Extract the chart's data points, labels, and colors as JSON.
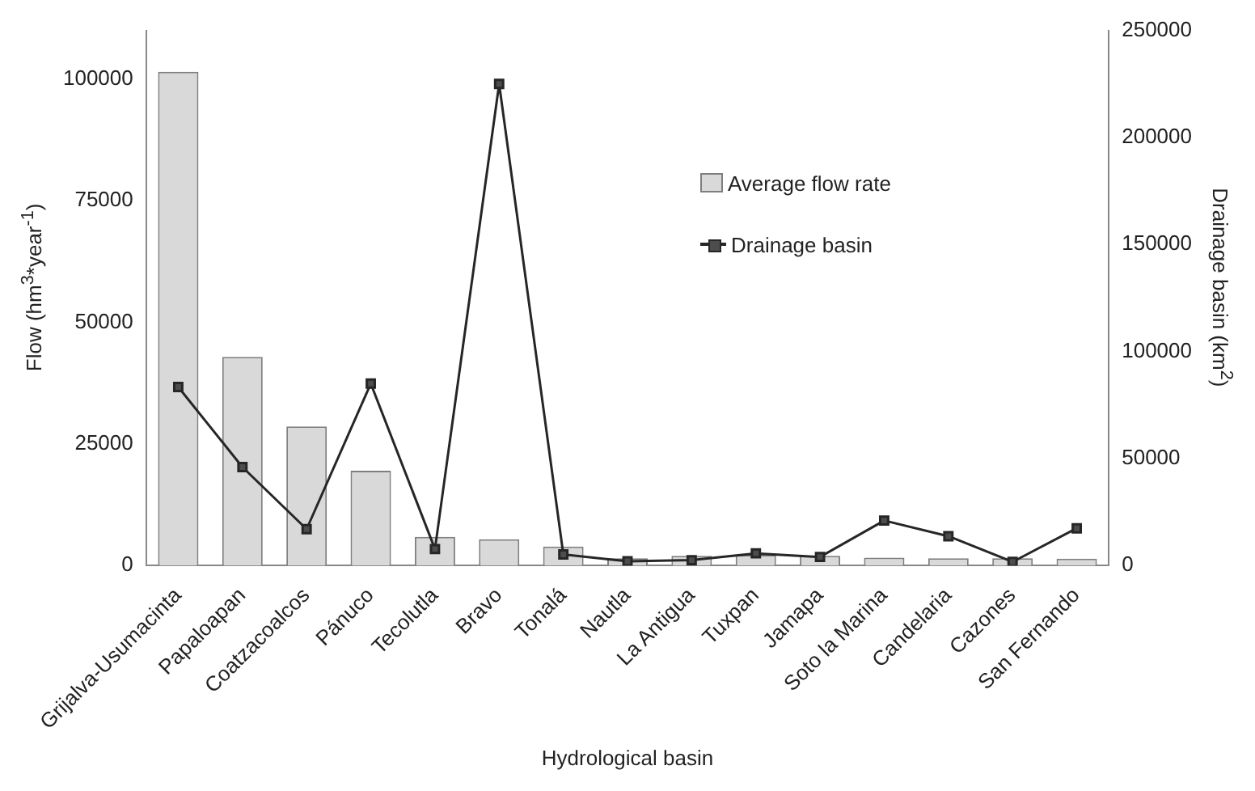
{
  "chart_data": {
    "type": "bar",
    "xlabel": "Hydrological basin",
    "ylabel": "Flow (hm$^{3}$*year$^{-1}$)",
    "y2label": "Drainage basin (km$^{2}$)",
    "categories": [
      "Grijalva-Usumacinta",
      "Papaloapan",
      "Coatzacoalcos",
      "Pánuco",
      "Tecolutla",
      "Bravo",
      "Tonalá",
      "Nautla",
      "La Antigua",
      "Tuxpan",
      "Jamapa",
      "Soto la Marina",
      "Candelaria",
      "Cazones",
      "San Fernando"
    ],
    "series": [
      {
        "name": "Average flow rate",
        "color": "#d9d9d9",
        "values": [
          101500,
          42900,
          28600,
          19500,
          5900,
          5400,
          3900,
          1500,
          2000,
          2200,
          2000,
          1600,
          1500,
          1500,
          1400
        ]
      },
      {
        "name": "Drainage basin",
        "type": "line",
        "axis": "y2",
        "color": "#262626",
        "marker": "square",
        "values": [
          83400,
          46000,
          17000,
          85000,
          7700,
          225000,
          5200,
          2000,
          2500,
          5700,
          4000,
          21000,
          13700,
          1700,
          17400
        ]
      }
    ],
    "ylim": [
      0,
      110000
    ],
    "yticks": [
      0,
      25000,
      50000,
      75000,
      100000
    ],
    "y2lim": [
      0,
      250000
    ],
    "y2ticks": [
      0,
      50000,
      100000,
      150000,
      200000,
      250000
    ],
    "grid": false,
    "legend": "top right"
  }
}
